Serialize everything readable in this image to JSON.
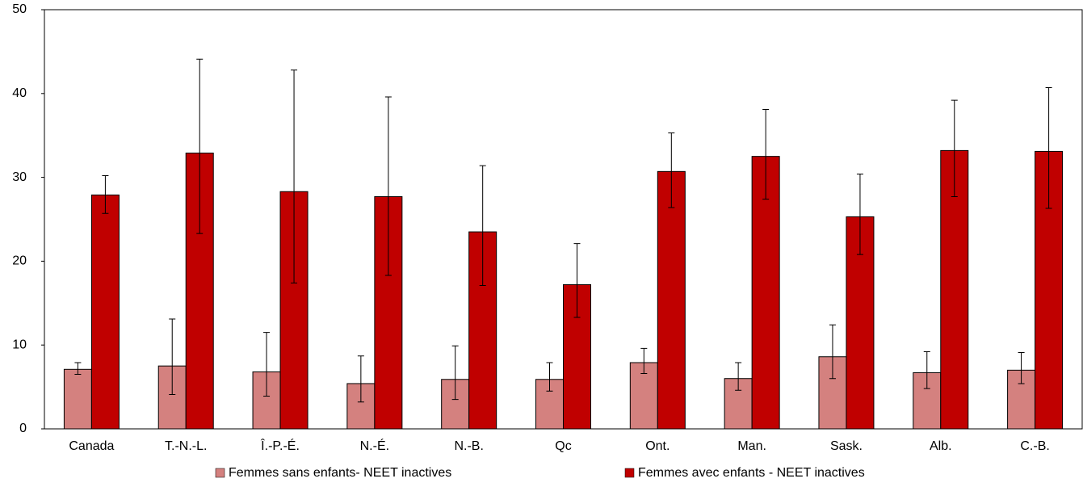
{
  "chart_data": {
    "type": "bar",
    "categories": [
      "Canada",
      "T.-N.-L.",
      "Î.-P.-É.",
      "N.-É.",
      "N.-B.",
      "Qc",
      "Ont.",
      "Man.",
      "Sask.",
      "Alb.",
      "C.-B."
    ],
    "series": [
      {
        "name": "Femmes sans enfants- NEET inactives",
        "color": "#d4817f",
        "values": [
          7.1,
          7.5,
          6.8,
          5.4,
          5.9,
          5.9,
          7.9,
          6.0,
          8.6,
          6.7,
          7.0
        ],
        "lower": [
          6.5,
          4.1,
          3.9,
          3.2,
          3.5,
          4.5,
          6.6,
          4.6,
          6.0,
          4.8,
          5.4
        ],
        "upper": [
          7.9,
          13.1,
          11.5,
          8.7,
          9.9,
          7.9,
          9.6,
          7.9,
          12.4,
          9.2,
          9.1
        ]
      },
      {
        "name": "Femmes avec enfants - NEET inactives",
        "color": "#c00000",
        "values": [
          27.9,
          32.9,
          28.3,
          27.7,
          23.5,
          17.2,
          30.7,
          32.5,
          25.3,
          33.2,
          33.1
        ],
        "lower": [
          25.7,
          23.3,
          17.4,
          18.3,
          17.1,
          13.3,
          26.4,
          27.4,
          20.8,
          27.7,
          26.3
        ],
        "upper": [
          30.2,
          44.1,
          42.8,
          39.6,
          31.4,
          22.1,
          35.3,
          38.1,
          30.4,
          39.2,
          40.7
        ]
      }
    ],
    "ylim": [
      0,
      50
    ],
    "yticks": [
      0,
      10,
      20,
      30,
      40,
      50
    ],
    "grid": false,
    "legend": "bottom"
  }
}
